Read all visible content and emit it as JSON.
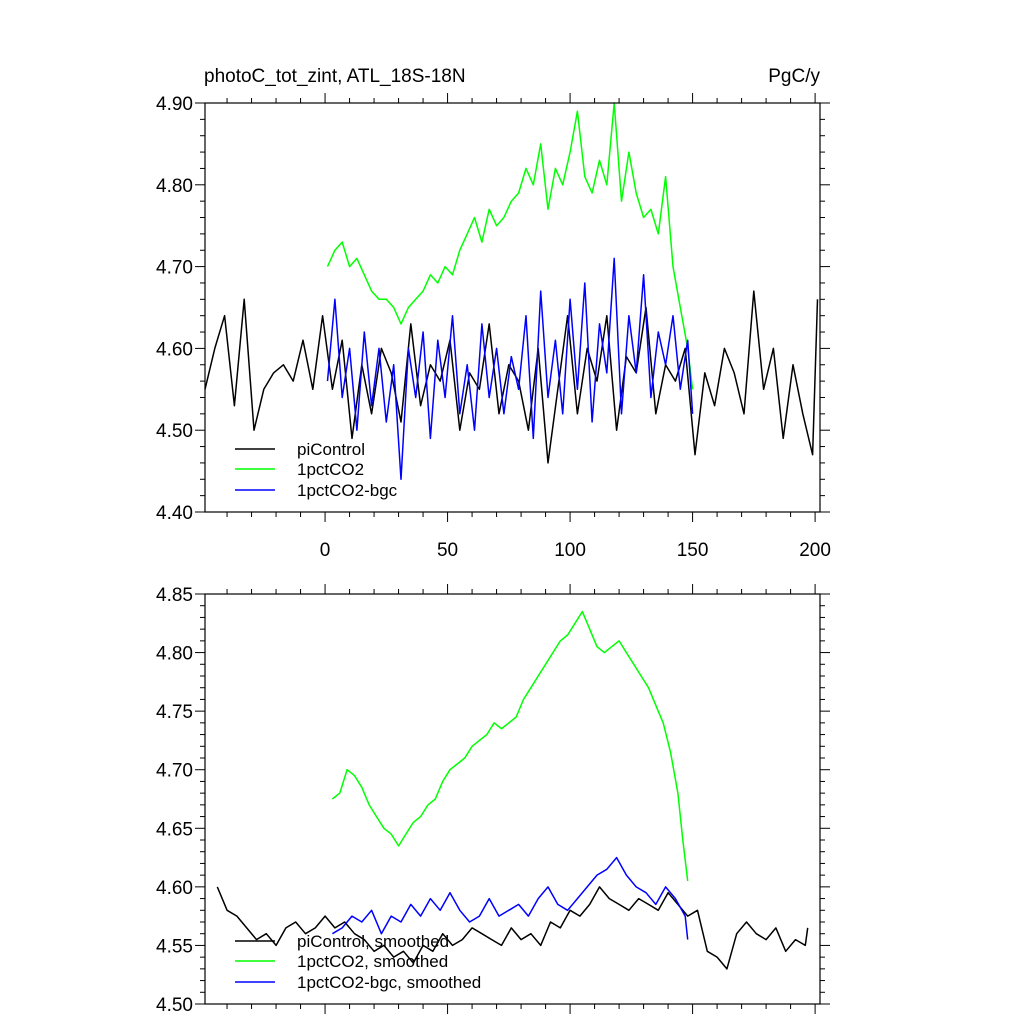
{
  "figure": {
    "title_left": "photoC_tot_zint, ATL_18S-18N",
    "title_right": "PgC/y"
  },
  "colors": {
    "piControl": "#000000",
    "1pctCO2": "#00ff00",
    "1pctCO2-bgc": "#0000ff",
    "axes": "#000000",
    "background": "#ffffff"
  },
  "chart_data": [
    {
      "type": "line",
      "panel": "top",
      "title": "photoC_tot_zint, ATL_18S-18N",
      "units": "PgC/y",
      "xlim": [
        -49,
        202
      ],
      "ylim": [
        4.4,
        4.9
      ],
      "xticks": [
        0,
        50,
        100,
        150,
        200
      ],
      "xtick_labels": [
        "0",
        "50",
        "100",
        "150",
        "200"
      ],
      "yticks": [
        4.4,
        4.5,
        4.6,
        4.7,
        4.8,
        4.9
      ],
      "ytick_labels": [
        "4.40",
        "4.50",
        "4.60",
        "4.70",
        "4.80",
        "4.90"
      ],
      "legend": {
        "placement": "bottom-left",
        "entries": [
          "piControl",
          "1pctCO2",
          "1pctCO2-bgc"
        ]
      },
      "series": [
        {
          "name": "piControl",
          "color": "#000000",
          "x": [
            -49,
            -45,
            -41,
            -37,
            -33,
            -29,
            -25,
            -21,
            -17,
            -13,
            -9,
            -5,
            -1,
            3,
            7,
            11,
            15,
            19,
            23,
            27,
            31,
            35,
            39,
            43,
            47,
            51,
            55,
            59,
            63,
            67,
            71,
            75,
            79,
            83,
            87,
            91,
            95,
            99,
            103,
            107,
            111,
            115,
            119,
            123,
            127,
            131,
            135,
            139,
            143,
            147,
            151,
            155,
            159,
            163,
            167,
            171,
            175,
            179,
            183,
            187,
            191,
            195,
            199,
            201
          ],
          "values": [
            4.55,
            4.6,
            4.64,
            4.53,
            4.66,
            4.5,
            4.55,
            4.57,
            4.58,
            4.56,
            4.61,
            4.55,
            4.64,
            4.55,
            4.61,
            4.49,
            4.58,
            4.52,
            4.6,
            4.57,
            4.51,
            4.63,
            4.53,
            4.58,
            4.56,
            4.61,
            4.5,
            4.57,
            4.55,
            4.63,
            4.52,
            4.58,
            4.56,
            4.5,
            4.6,
            4.46,
            4.55,
            4.64,
            4.52,
            4.6,
            4.56,
            4.64,
            4.5,
            4.59,
            4.57,
            4.65,
            4.52,
            4.58,
            4.56,
            4.6,
            4.47,
            4.57,
            4.53,
            4.6,
            4.57,
            4.52,
            4.67,
            4.55,
            4.6,
            4.49,
            4.58,
            4.52,
            4.47,
            4.66
          ]
        },
        {
          "name": "1pctCO2",
          "color": "#00ff00",
          "x": [
            1,
            4,
            7,
            10,
            13,
            16,
            19,
            22,
            25,
            28,
            31,
            34,
            37,
            40,
            43,
            46,
            49,
            52,
            55,
            58,
            61,
            64,
            67,
            70,
            73,
            76,
            79,
            82,
            85,
            88,
            91,
            94,
            97,
            100,
            103,
            106,
            109,
            112,
            115,
            118,
            121,
            124,
            127,
            130,
            133,
            136,
            139,
            142,
            145,
            148,
            150
          ],
          "values": [
            4.7,
            4.72,
            4.73,
            4.7,
            4.71,
            4.69,
            4.67,
            4.66,
            4.66,
            4.65,
            4.63,
            4.65,
            4.66,
            4.67,
            4.69,
            4.68,
            4.7,
            4.69,
            4.72,
            4.74,
            4.76,
            4.73,
            4.77,
            4.75,
            4.76,
            4.78,
            4.79,
            4.82,
            4.8,
            4.85,
            4.77,
            4.82,
            4.8,
            4.84,
            4.89,
            4.81,
            4.79,
            4.83,
            4.8,
            4.9,
            4.78,
            4.84,
            4.79,
            4.76,
            4.77,
            4.74,
            4.81,
            4.7,
            4.65,
            4.6,
            4.55
          ]
        },
        {
          "name": "1pctCO2-bgc",
          "color": "#0000ff",
          "x": [
            1,
            4,
            7,
            10,
            13,
            16,
            19,
            22,
            25,
            28,
            31,
            34,
            37,
            40,
            43,
            46,
            49,
            52,
            55,
            58,
            61,
            64,
            67,
            70,
            73,
            76,
            79,
            82,
            85,
            88,
            91,
            94,
            97,
            100,
            103,
            106,
            109,
            112,
            115,
            118,
            121,
            124,
            127,
            130,
            133,
            136,
            139,
            142,
            145,
            148,
            150
          ],
          "values": [
            4.56,
            4.66,
            4.54,
            4.6,
            4.5,
            4.62,
            4.53,
            4.6,
            4.51,
            4.58,
            4.44,
            4.6,
            4.54,
            4.62,
            4.49,
            4.61,
            4.54,
            4.64,
            4.52,
            4.58,
            4.5,
            4.63,
            4.54,
            4.6,
            4.52,
            4.59,
            4.55,
            4.64,
            4.49,
            4.67,
            4.54,
            4.61,
            4.52,
            4.66,
            4.55,
            4.68,
            4.51,
            4.63,
            4.57,
            4.71,
            4.52,
            4.64,
            4.57,
            4.69,
            4.54,
            4.62,
            4.58,
            4.64,
            4.55,
            4.61,
            4.52
          ]
        }
      ]
    },
    {
      "type": "line",
      "panel": "bottom",
      "xlim": [
        -49,
        202
      ],
      "ylim": [
        4.5,
        4.85
      ],
      "xticks": [
        0,
        50,
        100,
        150,
        200
      ],
      "yticks": [
        4.5,
        4.55,
        4.6,
        4.65,
        4.7,
        4.75,
        4.8,
        4.85
      ],
      "ytick_labels": [
        "4.50",
        "4.55",
        "4.60",
        "4.65",
        "4.70",
        "4.75",
        "4.80",
        "4.85"
      ],
      "legend": {
        "placement": "bottom-left",
        "entries": [
          "piControl, smoothed",
          "1pctCO2, smoothed",
          "1pctCO2-bgc, smoothed"
        ]
      },
      "series": [
        {
          "name": "piControl, smoothed",
          "color": "#000000",
          "x": [
            -44,
            -40,
            -36,
            -32,
            -28,
            -24,
            -20,
            -16,
            -12,
            -8,
            -4,
            0,
            4,
            8,
            12,
            16,
            20,
            24,
            28,
            32,
            36,
            40,
            44,
            48,
            52,
            56,
            60,
            64,
            68,
            72,
            76,
            80,
            84,
            88,
            92,
            96,
            100,
            104,
            108,
            112,
            116,
            120,
            124,
            128,
            132,
            136,
            140,
            144,
            148,
            152,
            156,
            160,
            164,
            168,
            172,
            176,
            180,
            184,
            188,
            192,
            196,
            197
          ],
          "values": [
            4.6,
            4.58,
            4.575,
            4.565,
            4.555,
            4.56,
            4.55,
            4.565,
            4.57,
            4.56,
            4.565,
            4.575,
            4.565,
            4.57,
            4.56,
            4.555,
            4.545,
            4.55,
            4.54,
            4.545,
            4.535,
            4.55,
            4.545,
            4.56,
            4.55,
            4.555,
            4.565,
            4.56,
            4.555,
            4.55,
            4.565,
            4.555,
            4.56,
            4.55,
            4.57,
            4.565,
            4.58,
            4.575,
            4.585,
            4.6,
            4.59,
            4.585,
            4.58,
            4.59,
            4.585,
            4.58,
            4.595,
            4.585,
            4.575,
            4.58,
            4.545,
            4.54,
            4.53,
            4.56,
            4.57,
            4.56,
            4.555,
            4.565,
            4.545,
            4.555,
            4.55,
            4.565
          ]
        },
        {
          "name": "1pctCO2, smoothed",
          "color": "#00ff00",
          "x": [
            3,
            6,
            9,
            12,
            15,
            18,
            21,
            24,
            27,
            30,
            33,
            36,
            39,
            42,
            45,
            48,
            51,
            54,
            57,
            60,
            63,
            66,
            69,
            72,
            75,
            78,
            81,
            84,
            87,
            90,
            93,
            96,
            99,
            102,
            105,
            108,
            111,
            114,
            117,
            120,
            123,
            126,
            129,
            132,
            135,
            138,
            141,
            144,
            146,
            148
          ],
          "values": [
            4.675,
            4.68,
            4.7,
            4.695,
            4.685,
            4.67,
            4.66,
            4.65,
            4.645,
            4.635,
            4.645,
            4.655,
            4.66,
            4.67,
            4.675,
            4.69,
            4.7,
            4.705,
            4.71,
            4.72,
            4.725,
            4.73,
            4.74,
            4.735,
            4.74,
            4.745,
            4.76,
            4.77,
            4.78,
            4.79,
            4.8,
            4.81,
            4.815,
            4.825,
            4.835,
            4.82,
            4.805,
            4.8,
            4.805,
            4.81,
            4.8,
            4.79,
            4.78,
            4.77,
            4.755,
            4.74,
            4.715,
            4.68,
            4.64,
            4.605
          ]
        },
        {
          "name": "1pctCO2-bgc, smoothed",
          "color": "#0000ff",
          "x": [
            3,
            7,
            11,
            15,
            19,
            23,
            27,
            31,
            35,
            39,
            43,
            47,
            51,
            55,
            59,
            63,
            67,
            71,
            75,
            79,
            83,
            87,
            91,
            95,
            99,
            103,
            107,
            111,
            115,
            119,
            123,
            127,
            131,
            135,
            139,
            143,
            147,
            148
          ],
          "values": [
            4.56,
            4.565,
            4.575,
            4.57,
            4.58,
            4.56,
            4.575,
            4.57,
            4.585,
            4.575,
            4.59,
            4.58,
            4.595,
            4.58,
            4.57,
            4.575,
            4.59,
            4.575,
            4.58,
            4.585,
            4.575,
            4.59,
            4.6,
            4.585,
            4.58,
            4.59,
            4.6,
            4.61,
            4.615,
            4.625,
            4.61,
            4.6,
            4.595,
            4.585,
            4.6,
            4.59,
            4.575,
            4.555
          ]
        }
      ]
    }
  ]
}
